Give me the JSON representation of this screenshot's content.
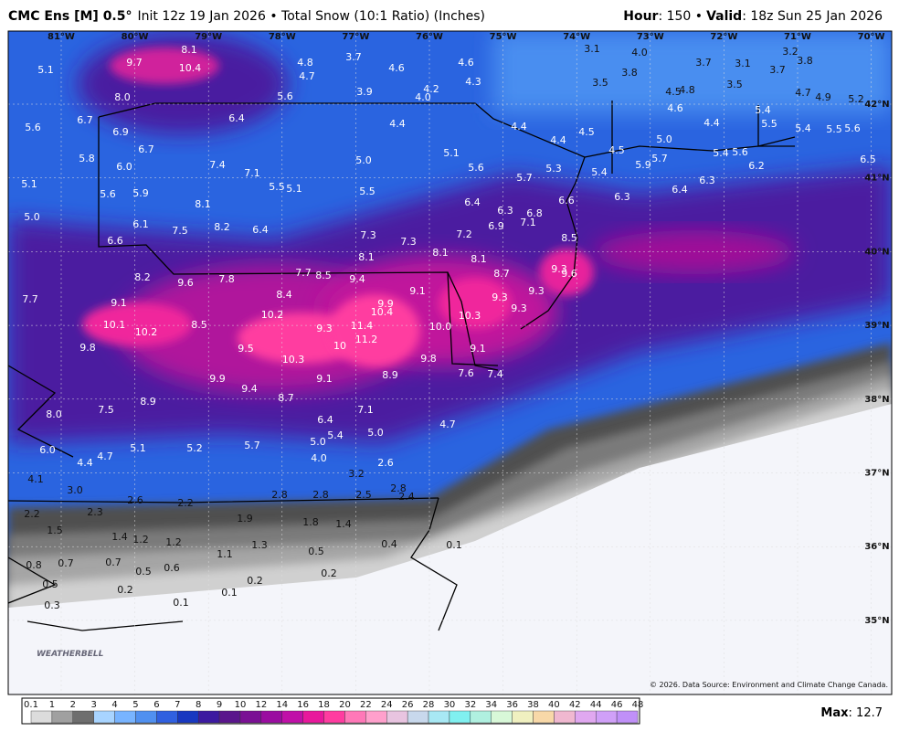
{
  "header": {
    "model": "CMC Ens [M] 0.5°",
    "run": "Init 12z 19 Jan 2026 • Total Snow (10:1 Ratio) (Inches)",
    "hour_label": "Hour",
    "hour_value": ": 150 •",
    "valid_label": "Valid",
    "valid_value": ": 18z Sun 25 Jan 2026"
  },
  "longitudes": [
    "81°W",
    "80°W",
    "79°W",
    "78°W",
    "77°W",
    "76°W",
    "75°W",
    "74°W",
    "73°W",
    "72°W",
    "71°W",
    "70°W"
  ],
  "latitudes": [
    "42°N",
    "41°N",
    "40°N",
    "39°N",
    "38°N",
    "37°N",
    "36°N",
    "35°N"
  ],
  "points": [
    "5.1",
    "9.7",
    "8.1",
    "10.4",
    "8.0",
    "4.8",
    "3.7",
    "4.7",
    "4.6",
    "4.6",
    "4.3",
    "3.1",
    "4.0",
    "3.2",
    "3.8",
    "3.7",
    "3.1",
    "3.7",
    "3.8",
    "3.5",
    "3.5",
    "5.6",
    "3.9",
    "4.0",
    "4.2",
    "4.5",
    "4.8",
    "4.7",
    "4.9",
    "5.2",
    "5.6",
    "6.7",
    "6.9",
    "6.4",
    "4.4",
    "4.4",
    "4.6",
    "5.4",
    "4.4",
    "5.5",
    "5.4",
    "5.5",
    "5.6",
    "4.5",
    "4.4",
    "5.0",
    "5.8",
    "6.7",
    "6.0",
    "7.4",
    "7.1",
    "5.0",
    "5.1",
    "5.6",
    "5.7",
    "5.3",
    "4.5",
    "5.4",
    "5.9",
    "5.7",
    "5.4",
    "5.6",
    "6.2",
    "6.5",
    "5.1",
    "5.6",
    "5.9",
    "5.5",
    "5.1",
    "5.5",
    "8.1",
    "6.3",
    "6.4",
    "6.3",
    "5.0",
    "6.1",
    "7.5",
    "8.2",
    "6.4",
    "6.4",
    "6.3",
    "6.8",
    "7.1",
    "6.9",
    "6.6",
    "7.3",
    "7.3",
    "8.1",
    "7.2",
    "6.6",
    "8.5",
    "8.1",
    "8.1",
    "8.2",
    "9.6",
    "7.8",
    "7.7",
    "8.5",
    "9.4",
    "8.7",
    "9.3",
    "9.6",
    "7.7",
    "9.1",
    "8.4",
    "9.1",
    "9.3",
    "9.3",
    "9.3",
    "9.9",
    "10.4",
    "10.2",
    "10.3",
    "10.1",
    "10.2",
    "8.5",
    "11.4",
    "10.0",
    "9.3",
    "11.2",
    "10",
    "9.8",
    "9.5",
    "9.1",
    "10.3",
    "9.8",
    "9.9",
    "9.1",
    "8.9",
    "7.6",
    "7.4",
    "9.4",
    "8.9",
    "8.7",
    "7.1",
    "7.5",
    "8.0",
    "6.4",
    "5.4",
    "5.0",
    "4.7",
    "5.0",
    "6.0",
    "5.1",
    "5.2",
    "5.7",
    "4.7",
    "4.4",
    "4.0",
    "4.1",
    "3.2",
    "2.6",
    "3.0",
    "2.8",
    "2.8",
    "2.5",
    "2.8",
    "2.4",
    "2.6",
    "2.2",
    "2.3",
    "2.2",
    "1.9",
    "1.8",
    "1.4",
    "1.5",
    "1.4",
    "1.2",
    "1.2",
    "1.3",
    "0.4",
    "0.1",
    "0.5",
    "1.1",
    "0.8",
    "0.7",
    "0.7",
    "0.5",
    "0.6",
    "0.2",
    "0.2",
    "0.5",
    "0.2",
    "0.1",
    "0.1",
    "0.3"
  ],
  "colorbar": {
    "labels": [
      "0.1",
      "1",
      "2",
      "3",
      "4",
      "5",
      "6",
      "7",
      "8",
      "9",
      "10",
      "12",
      "14",
      "16",
      "18",
      "20",
      "22",
      "24",
      "26",
      "28",
      "30",
      "32",
      "34",
      "36",
      "38",
      "40",
      "42",
      "44",
      "46",
      "48"
    ],
    "colors": [
      "#dcdcdc",
      "#a0a0a0",
      "#6e6e6e",
      "#a8d4ff",
      "#78b4ff",
      "#5090f0",
      "#3060e0",
      "#1838c0",
      "#3c1aa0",
      "#5a168c",
      "#7a1094",
      "#9a0ca0",
      "#c010a8",
      "#e8189c",
      "#ff3ca0",
      "#ff78b8",
      "#ffa0cc",
      "#e8c4e0",
      "#c8d8ec",
      "#a8e8f4",
      "#80f0f0",
      "#b0f0e0",
      "#d8f8d8",
      "#f0f0c0",
      "#f8d8a8",
      "#f0b8d0",
      "#e0a8f0",
      "#d0a0f8",
      "#c090f8"
    ]
  },
  "max_label": "Max",
  "max_value": ": 12.7",
  "copyright": "© 2026. Data Source: Environment and Climate Change Canada.",
  "logo": "WEATHERBELL"
}
